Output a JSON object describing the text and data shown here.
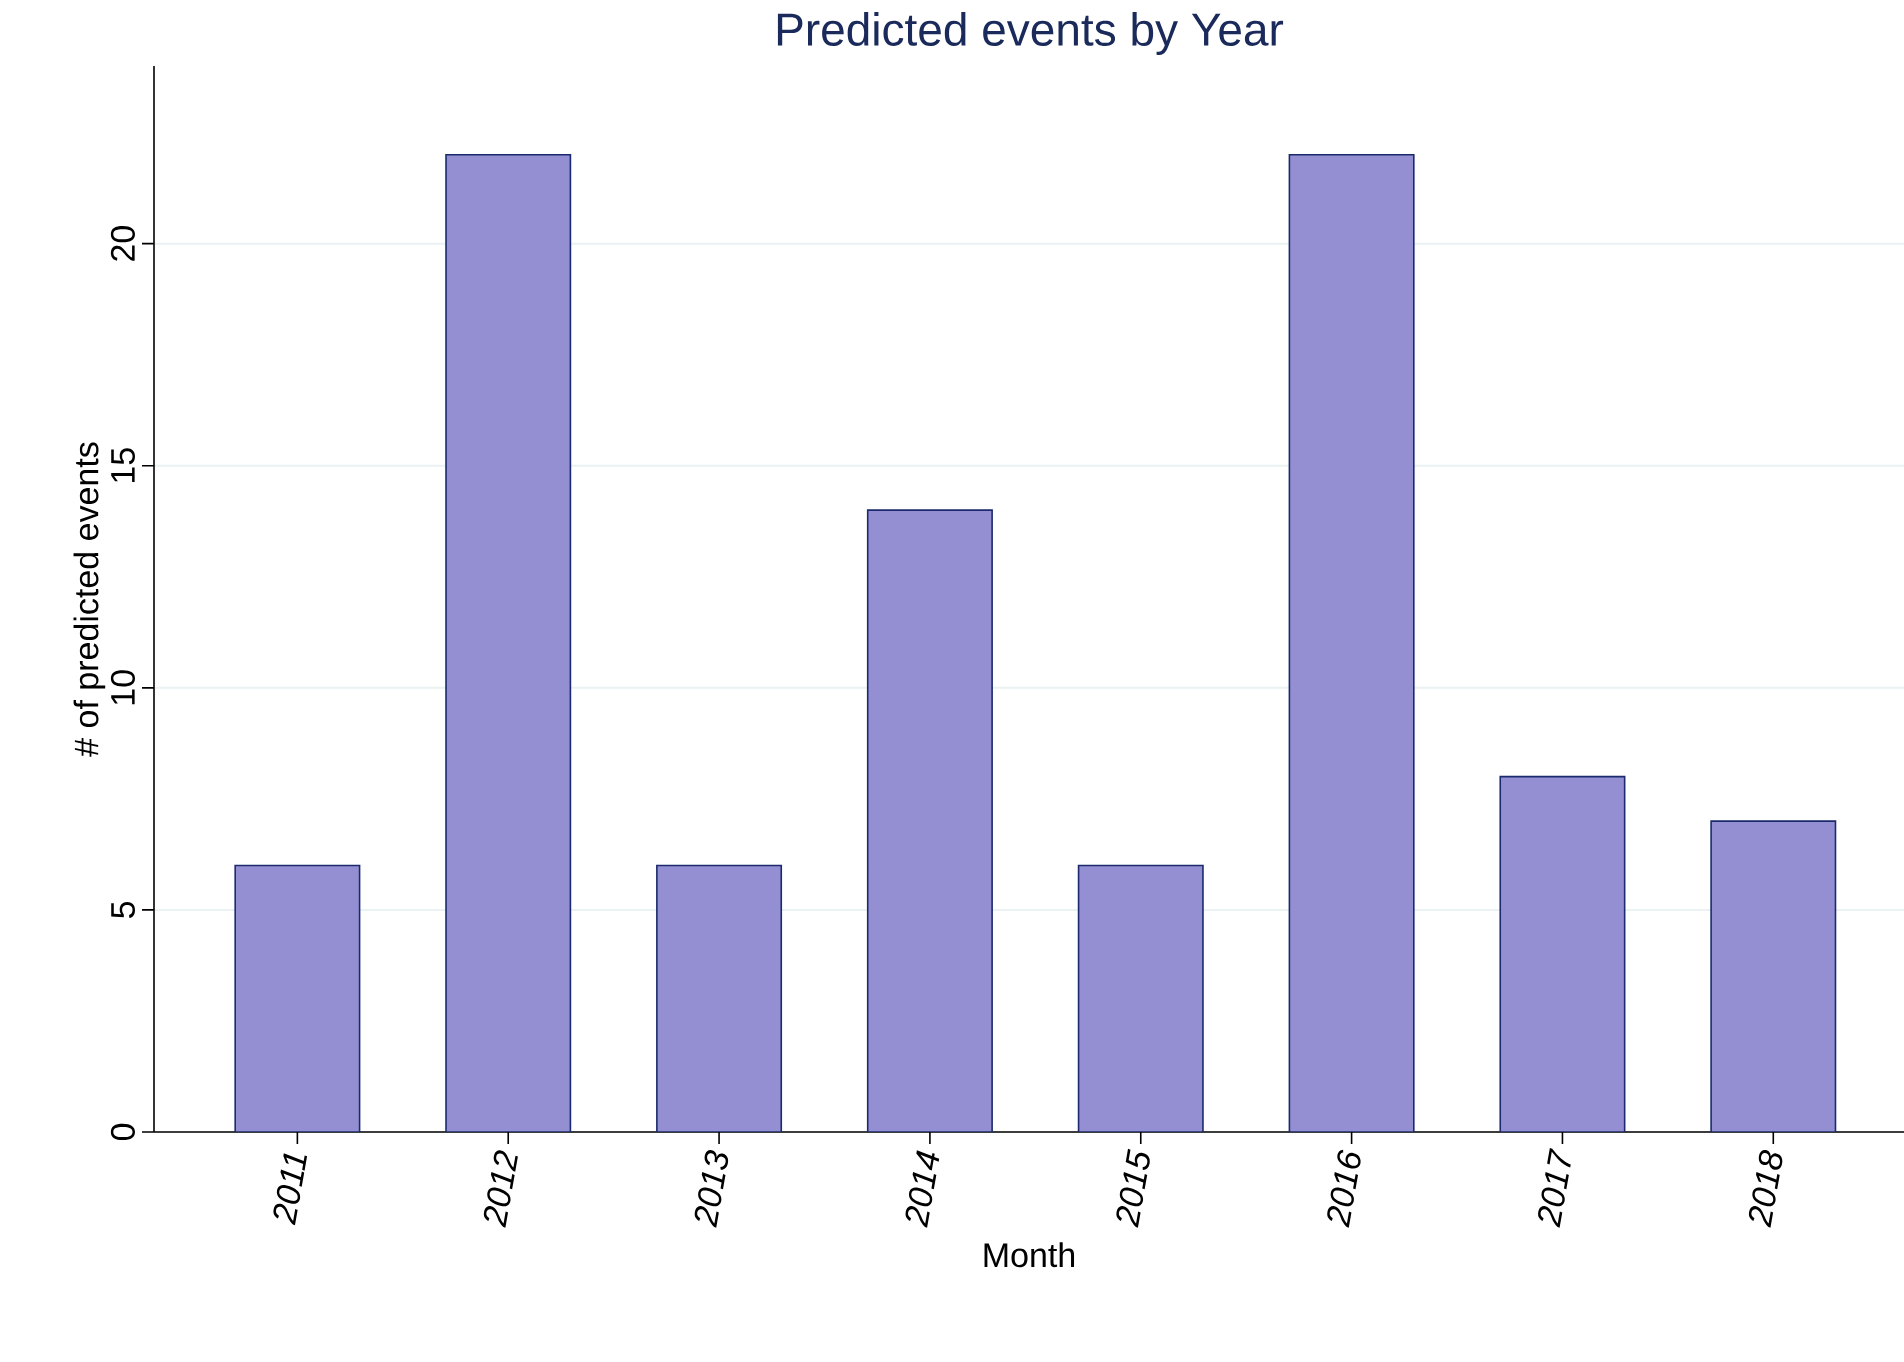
{
  "chart_data": {
    "type": "bar",
    "title": "Predicted events by Year",
    "xlabel": "Month",
    "ylabel": "# of predicted events",
    "categories": [
      "2011",
      "2012",
      "2013",
      "2014",
      "2015",
      "2016",
      "2017",
      "2018"
    ],
    "values": [
      6,
      22,
      6,
      14,
      6,
      22,
      8,
      7
    ],
    "color": "#948fd2",
    "ylim": [
      0,
      24
    ],
    "yticks": [
      0,
      5,
      10,
      15,
      20
    ],
    "grid": "y"
  }
}
